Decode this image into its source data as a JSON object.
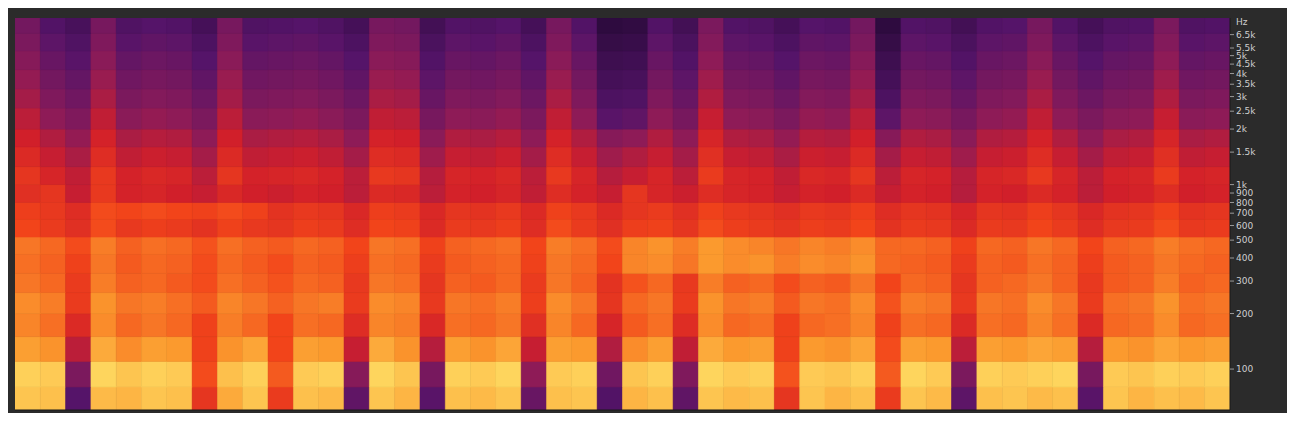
{
  "chart_data": {
    "type": "heatmap",
    "ylabel": "Hz",
    "log": "y",
    "tick_labels": "y",
    "xlim": [
      0,
      48
    ],
    "ylim": [
      60,
      8000
    ],
    "yticks": [
      100,
      200,
      300,
      400,
      500,
      600,
      700,
      800,
      900,
      {
        "value": 1000,
        "label": "1k"
      },
      {
        "value": 1500,
        "label": "1.5k"
      },
      {
        "value": 2000,
        "label": "2k"
      },
      {
        "value": 2500,
        "label": "2.5k"
      },
      {
        "value": 3000,
        "label": "3k"
      },
      {
        "value": 3500,
        "label": "3.5k"
      },
      {
        "value": 4000,
        "label": "4k"
      },
      {
        "value": 4500,
        "label": "4.5k"
      },
      {
        "value": 5000,
        "label": "5k"
      },
      {
        "value": 5500,
        "label": "5.5k"
      },
      {
        "value": 6500,
        "label": "6.5k"
      }
    ],
    "y_bins": [
      60,
      80,
      110,
      150,
      200,
      260,
      330,
      420,
      520,
      650,
      800,
      1000,
      1250,
      1600,
      2000,
      2600,
      3300,
      4200,
      5300,
      6600,
      8000
    ],
    "color_range": [
      0,
      100
    ],
    "cells": [
      [
        95,
        94,
        35,
        93,
        92,
        95,
        94,
        70,
        90,
        95,
        72,
        94,
        93,
        38,
        95,
        92,
        36,
        94,
        93,
        95,
        40,
        94,
        95,
        34,
        92,
        94,
        38,
        95,
        93,
        94,
        70,
        95,
        92,
        94,
        72,
        95,
        93,
        37,
        94,
        95,
        93,
        94,
        36,
        95,
        92,
        94,
        93,
        95
      ],
      [
        97,
        96,
        45,
        98,
        95,
        97,
        96,
        76,
        94,
        97,
        78,
        96,
        97,
        48,
        98,
        95,
        44,
        97,
        96,
        98,
        50,
        96,
        97,
        42,
        95,
        97,
        46,
        98,
        96,
        97,
        77,
        96,
        95,
        97,
        78,
        98,
        96,
        45,
        97,
        96,
        97,
        98,
        44,
        96,
        95,
        97,
        96,
        97
      ],
      [
        88,
        86,
        58,
        90,
        85,
        88,
        87,
        74,
        86,
        89,
        75,
        88,
        87,
        60,
        90,
        86,
        57,
        88,
        86,
        89,
        60,
        88,
        87,
        56,
        85,
        88,
        59,
        90,
        87,
        88,
        74,
        87,
        86,
        89,
        76,
        88,
        87,
        58,
        88,
        87,
        89,
        88,
        57,
        87,
        86,
        89,
        87,
        88
      ],
      [
        84,
        81,
        66,
        85,
        80,
        82,
        80,
        74,
        83,
        80,
        75,
        81,
        80,
        67,
        84,
        83,
        65,
        81,
        80,
        82,
        68,
        84,
        80,
        64,
        78,
        81,
        67,
        85,
        80,
        81,
        74,
        80,
        81,
        84,
        74,
        81,
        80,
        66,
        81,
        80,
        84,
        81,
        66,
        80,
        81,
        85,
        80,
        81
      ],
      [
        85,
        83,
        72,
        86,
        82,
        83,
        81,
        78,
        84,
        82,
        79,
        82,
        83,
        72,
        85,
        84,
        71,
        82,
        81,
        83,
        73,
        85,
        82,
        70,
        80,
        82,
        72,
        86,
        82,
        83,
        78,
        82,
        81,
        85,
        77,
        83,
        82,
        71,
        82,
        81,
        85,
        82,
        72,
        81,
        82,
        86,
        81,
        82
      ],
      [
        82,
        80,
        72,
        83,
        79,
        80,
        78,
        76,
        81,
        79,
        77,
        80,
        79,
        71,
        82,
        81,
        70,
        79,
        78,
        80,
        72,
        82,
        79,
        69,
        77,
        80,
        71,
        83,
        79,
        80,
        76,
        79,
        78,
        82,
        75,
        80,
        79,
        70,
        79,
        80,
        82,
        79,
        71,
        78,
        79,
        83,
        79,
        80
      ],
      [
        81,
        79,
        74,
        82,
        78,
        80,
        79,
        76,
        80,
        78,
        76,
        79,
        78,
        73,
        81,
        80,
        72,
        78,
        79,
        80,
        74,
        82,
        80,
        75,
        84,
        85,
        82,
        87,
        85,
        86,
        83,
        85,
        84,
        86,
        80,
        79,
        78,
        72,
        79,
        78,
        81,
        79,
        73,
        78,
        79,
        82,
        80,
        79
      ],
      [
        82,
        80,
        76,
        83,
        79,
        81,
        80,
        77,
        81,
        79,
        78,
        80,
        79,
        75,
        82,
        81,
        74,
        79,
        80,
        81,
        75,
        83,
        81,
        76,
        84,
        86,
        83,
        87,
        85,
        84,
        82,
        84,
        83,
        85,
        80,
        80,
        79,
        74,
        80,
        79,
        82,
        80,
        75,
        79,
        80,
        83,
        81,
        80
      ],
      [
        75,
        72,
        68,
        76,
        71,
        73,
        72,
        69,
        74,
        71,
        70,
        73,
        72,
        67,
        75,
        74,
        66,
        72,
        71,
        73,
        67,
        76,
        72,
        68,
        73,
        74,
        70,
        76,
        73,
        72,
        70,
        73,
        72,
        75,
        69,
        72,
        71,
        66,
        72,
        71,
        75,
        72,
        67,
        71,
        72,
        76,
        71,
        72
      ],
      [
        73,
        71,
        67,
        76,
        75,
        76,
        75,
        74,
        76,
        74,
        69,
        71,
        70,
        65,
        73,
        72,
        65,
        70,
        69,
        71,
        66,
        74,
        71,
        66,
        70,
        72,
        68,
        74,
        71,
        70,
        68,
        71,
        70,
        73,
        67,
        70,
        69,
        64,
        70,
        69,
        73,
        70,
        65,
        69,
        70,
        74,
        69,
        70
      ],
      [
        68,
        70,
        60,
        71,
        63,
        64,
        62,
        60,
        65,
        62,
        61,
        63,
        62,
        58,
        66,
        65,
        58,
        63,
        62,
        64,
        59,
        67,
        63,
        60,
        70,
        64,
        61,
        67,
        64,
        63,
        60,
        63,
        62,
        66,
        60,
        63,
        62,
        57,
        63,
        62,
        66,
        63,
        58,
        62,
        63,
        67,
        62,
        63
      ],
      [
        70,
        64,
        59,
        71,
        63,
        65,
        64,
        58,
        70,
        63,
        64,
        65,
        63,
        58,
        71,
        70,
        57,
        64,
        63,
        65,
        58,
        71,
        64,
        57,
        60,
        64,
        58,
        72,
        64,
        63,
        59,
        65,
        64,
        70,
        58,
        64,
        63,
        57,
        64,
        65,
        71,
        64,
        58,
        63,
        64,
        72,
        63,
        64
      ],
      [
        66,
        60,
        55,
        67,
        59,
        61,
        60,
        54,
        66,
        59,
        60,
        61,
        59,
        54,
        67,
        66,
        53,
        60,
        59,
        61,
        54,
        67,
        60,
        53,
        56,
        60,
        54,
        68,
        60,
        59,
        55,
        61,
        60,
        66,
        54,
        60,
        59,
        53,
        60,
        61,
        67,
        60,
        54,
        59,
        60,
        68,
        59,
        60
      ],
      [
        62,
        56,
        51,
        63,
        55,
        57,
        56,
        50,
        62,
        55,
        56,
        57,
        55,
        50,
        63,
        62,
        49,
        56,
        55,
        57,
        50,
        63,
        56,
        48,
        50,
        56,
        50,
        64,
        56,
        55,
        51,
        57,
        56,
        62,
        48,
        56,
        55,
        49,
        56,
        57,
        63,
        56,
        50,
        55,
        56,
        64,
        55,
        56
      ],
      [
        58,
        50,
        46,
        59,
        49,
        51,
        50,
        45,
        58,
        49,
        50,
        51,
        49,
        45,
        59,
        58,
        44,
        50,
        49,
        51,
        45,
        59,
        50,
        36,
        38,
        50,
        44,
        60,
        50,
        49,
        45,
        51,
        50,
        58,
        37,
        50,
        49,
        44,
        50,
        51,
        59,
        50,
        45,
        49,
        50,
        60,
        49,
        50
      ],
      [
        54,
        46,
        42,
        55,
        45,
        47,
        46,
        41,
        54,
        45,
        46,
        47,
        45,
        41,
        55,
        54,
        40,
        46,
        45,
        47,
        41,
        55,
        46,
        32,
        33,
        46,
        40,
        56,
        46,
        45,
        41,
        47,
        46,
        54,
        32,
        46,
        45,
        40,
        46,
        47,
        55,
        46,
        41,
        45,
        46,
        56,
        45,
        46
      ],
      [
        51,
        43,
        39,
        52,
        42,
        44,
        43,
        38,
        52,
        42,
        43,
        44,
        42,
        38,
        52,
        51,
        37,
        43,
        42,
        44,
        38,
        52,
        43,
        29,
        30,
        43,
        37,
        53,
        43,
        42,
        38,
        44,
        43,
        51,
        29,
        43,
        42,
        37,
        43,
        44,
        52,
        43,
        38,
        42,
        43,
        53,
        42,
        43
      ],
      [
        48,
        40,
        36,
        49,
        39,
        41,
        40,
        35,
        49,
        39,
        40,
        41,
        39,
        35,
        49,
        48,
        34,
        40,
        39,
        41,
        35,
        49,
        40,
        26,
        27,
        40,
        34,
        50,
        40,
        39,
        35,
        41,
        40,
        48,
        26,
        40,
        39,
        34,
        40,
        41,
        49,
        40,
        35,
        39,
        40,
        50,
        39,
        40
      ],
      [
        45,
        37,
        33,
        46,
        36,
        38,
        37,
        32,
        46,
        36,
        37,
        38,
        36,
        32,
        46,
        45,
        31,
        37,
        36,
        38,
        32,
        46,
        37,
        23,
        24,
        37,
        31,
        47,
        37,
        36,
        32,
        38,
        37,
        45,
        23,
        37,
        36,
        31,
        37,
        38,
        46,
        37,
        32,
        36,
        37,
        47,
        36,
        37
      ],
      [
        43,
        34,
        30,
        44,
        33,
        35,
        34,
        29,
        44,
        33,
        34,
        35,
        33,
        29,
        44,
        43,
        28,
        34,
        33,
        35,
        29,
        44,
        34,
        20,
        21,
        34,
        28,
        45,
        34,
        33,
        29,
        35,
        34,
        43,
        20,
        34,
        33,
        28,
        34,
        35,
        44,
        34,
        29,
        33,
        34,
        45,
        33,
        34
      ]
    ]
  }
}
